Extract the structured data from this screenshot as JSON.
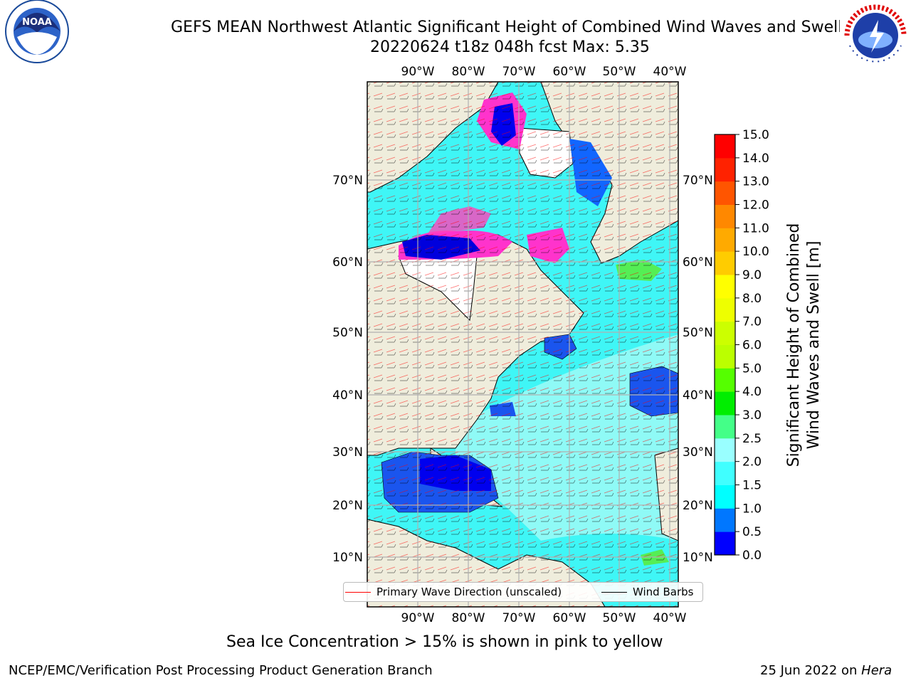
{
  "title": {
    "line1": "GEFS MEAN Northwest Atlantic Significant Height of Combined Wind Waves and Swell",
    "line2": "20220624 t18z 048h fcst   Max: 5.35"
  },
  "logos": {
    "left": {
      "name": "NOAA",
      "icon": "noaa-logo"
    },
    "right": {
      "name": "National Weather Service",
      "icon": "nws-logo"
    }
  },
  "map": {
    "lon_labels": [
      "90°W",
      "80°W",
      "70°W",
      "60°W",
      "50°W",
      "40°W"
    ],
    "lat_labels": [
      "70°N",
      "60°N",
      "50°N",
      "40°N",
      "30°N",
      "20°N",
      "10°N"
    ],
    "land_color": "#efeddc",
    "sea_ice_color": "#ff33cc"
  },
  "legend": {
    "items": [
      {
        "label": "Primary Wave Direction (unscaled)",
        "color": "#ff0000"
      },
      {
        "label": "Wind Barbs",
        "color": "#000000"
      }
    ]
  },
  "colorbar": {
    "label_line1": "Significant Height of Combined",
    "label_line2": "Wind Waves and Swell [m]",
    "ticks": [
      "0.0",
      "0.5",
      "1.0",
      "1.5",
      "2.0",
      "2.5",
      "3.0",
      "4.0",
      "5.0",
      "6.0",
      "7.0",
      "8.0",
      "9.0",
      "10.0",
      "11.0",
      "12.0",
      "13.0",
      "14.0",
      "15.0"
    ],
    "colors": [
      "#0000ff",
      "#0077ff",
      "#00ffff",
      "#40ffff",
      "#99ffff",
      "#44ff88",
      "#00ee00",
      "#55ff00",
      "#bbff00",
      "#ccff00",
      "#eeff00",
      "#ffff00",
      "#ffcc00",
      "#ffaa00",
      "#ff8800",
      "#ff5500",
      "#ff2200",
      "#ff0000"
    ]
  },
  "footnote": "Sea Ice Concentration > 15% is shown in pink to yellow",
  "credits": {
    "left": "NCEP/EMC/Verification Post Processing Product Generation Branch",
    "right_prefix": "25 Jun 2022 on ",
    "right_host": "Hera"
  }
}
